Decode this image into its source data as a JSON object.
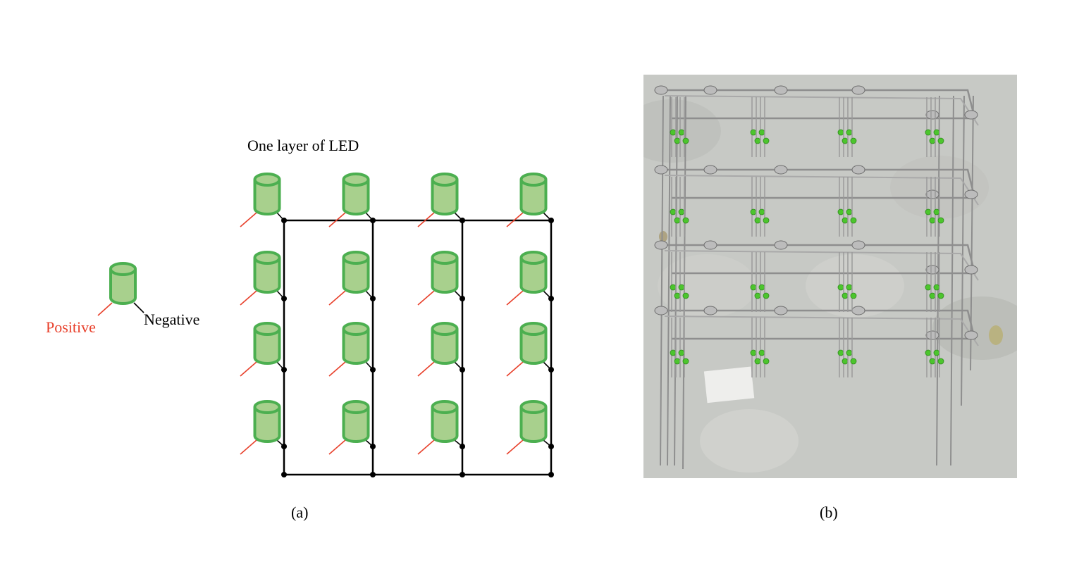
{
  "legend": {
    "positive_label": "Positive",
    "negative_label": "Negative",
    "positive_color": "#e8402b",
    "negative_color": "#000000"
  },
  "panel_a": {
    "title": "One layer of LED",
    "caption": "(a)",
    "grid": {
      "rows": 4,
      "columns": 4
    },
    "led_fill": "#a8d08d",
    "led_stroke": "#4caf50",
    "wire_color": "#000000"
  },
  "panel_b": {
    "caption": "(b)",
    "content": "photo",
    "led_color": "#4cc52d",
    "background_color": "#c7c9c5"
  }
}
